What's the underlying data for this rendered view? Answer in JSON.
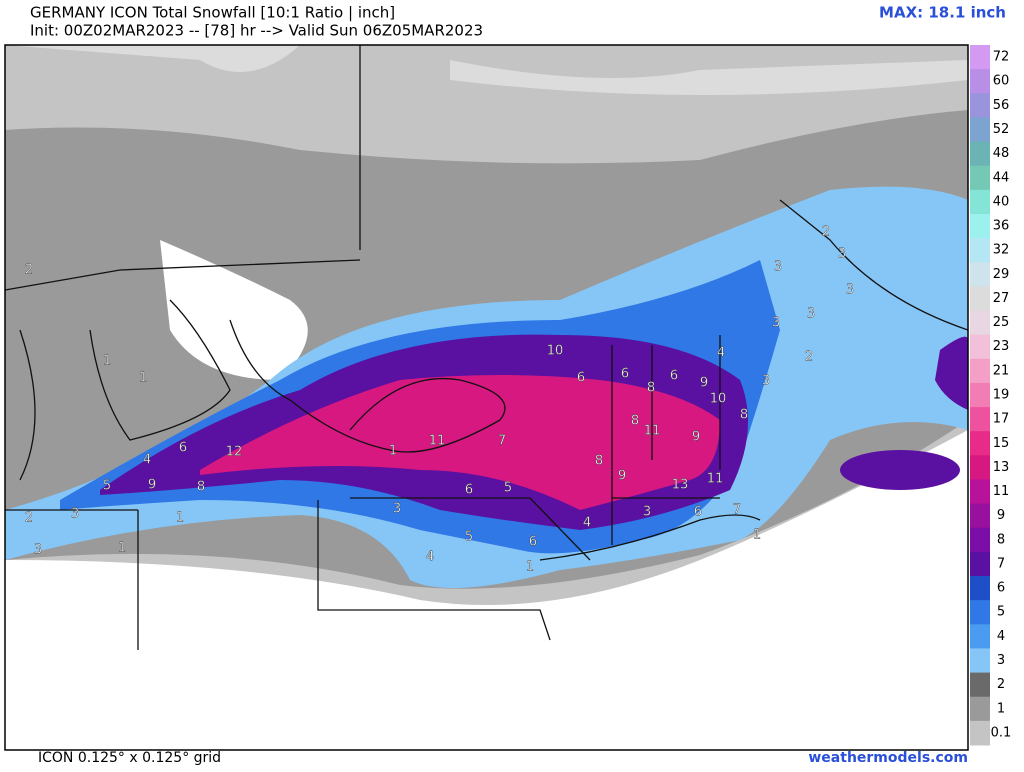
{
  "header": {
    "title": "GERMANY ICON Total Snowfall [10:1 Ratio | inch]",
    "subtitle": "Init: 00Z02MAR2023 -- [78] hr --> Valid Sun 06Z05MAR2023",
    "max": "MAX: 18.1 inch"
  },
  "footer": {
    "grid": "ICON 0.125° x 0.125° grid",
    "site": "weathermodels.com"
  },
  "colorbar": {
    "ticks": [
      "72",
      "60",
      "56",
      "52",
      "48",
      "44",
      "40",
      "36",
      "32",
      "29",
      "27",
      "25",
      "23",
      "21",
      "19",
      "17",
      "15",
      "13",
      "11",
      "9",
      "8",
      "7",
      "6",
      "5",
      "4",
      "3",
      "2",
      "1",
      "0.1"
    ],
    "colors": [
      "#d49af2",
      "#b98ee6",
      "#9a94dc",
      "#7da4cf",
      "#6cb3b6",
      "#74c8b4",
      "#84e4d6",
      "#9cf0ee",
      "#b4e6f4",
      "#cfe3ec",
      "#dcdcdc",
      "#e8d6e2",
      "#f2c0d8",
      "#f4a0c6",
      "#f27cb4",
      "#ee529e",
      "#e82a88",
      "#d61880",
      "#b8129a",
      "#98109e",
      "#7a0ea6",
      "#5a10a0",
      "#1e4fc8",
      "#2f78e6",
      "#4b9cf0",
      "#86c6f6",
      "#6a6a6a",
      "#9a9a9a",
      "#c4c4c4"
    ]
  },
  "map_labels": [
    10,
    6,
    6,
    8,
    6,
    9,
    4,
    10,
    3,
    8,
    8,
    11,
    9,
    11,
    7,
    8,
    9,
    13,
    11,
    6,
    5,
    3,
    5,
    4,
    6,
    4,
    3,
    6,
    7,
    1,
    1,
    12,
    6,
    4,
    5,
    9,
    8,
    1,
    1,
    3,
    2,
    3,
    1,
    1,
    1,
    3,
    3,
    2,
    3,
    3,
    3,
    2,
    2
  ]
}
